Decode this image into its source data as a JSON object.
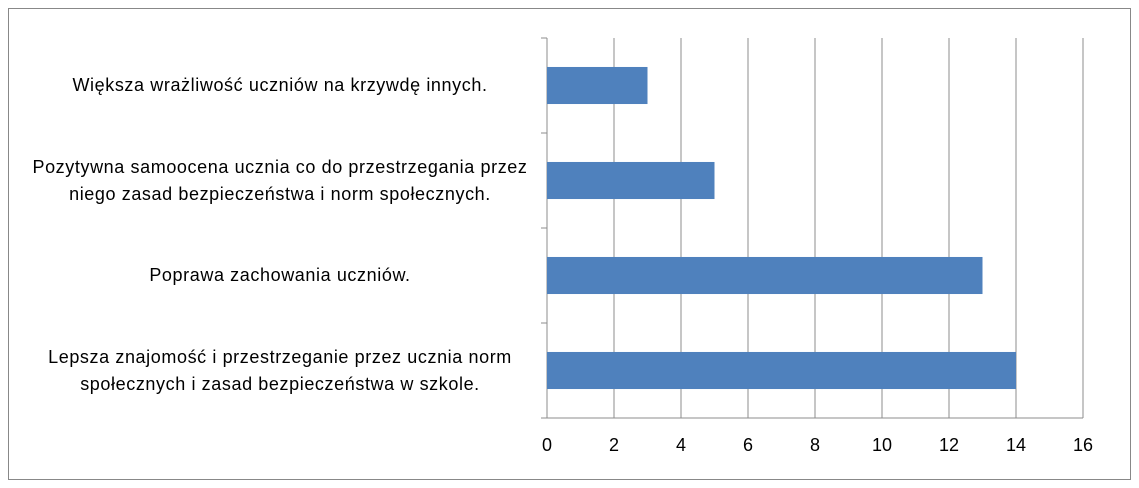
{
  "chart_data": {
    "type": "bar",
    "orientation": "horizontal",
    "categories": [
      "Większa wrażliwość uczniów na krzywdę innych.",
      "Pozytywna samoocena ucznia co do przestrzegania przez niego zasad bezpieczeństwa i norm społecznych.",
      "Poprawa zachowania uczniów.",
      "Lepsza znajomość i przestrzeganie przez ucznia norm społecznych i zasad bezpieczeństwa w szkole."
    ],
    "values": [
      3,
      5,
      13,
      14
    ],
    "color": "#4f81bd",
    "xlim": [
      0,
      16
    ],
    "xticks": [
      0,
      2,
      4,
      6,
      8,
      10,
      12,
      14,
      16
    ],
    "grid": true
  }
}
